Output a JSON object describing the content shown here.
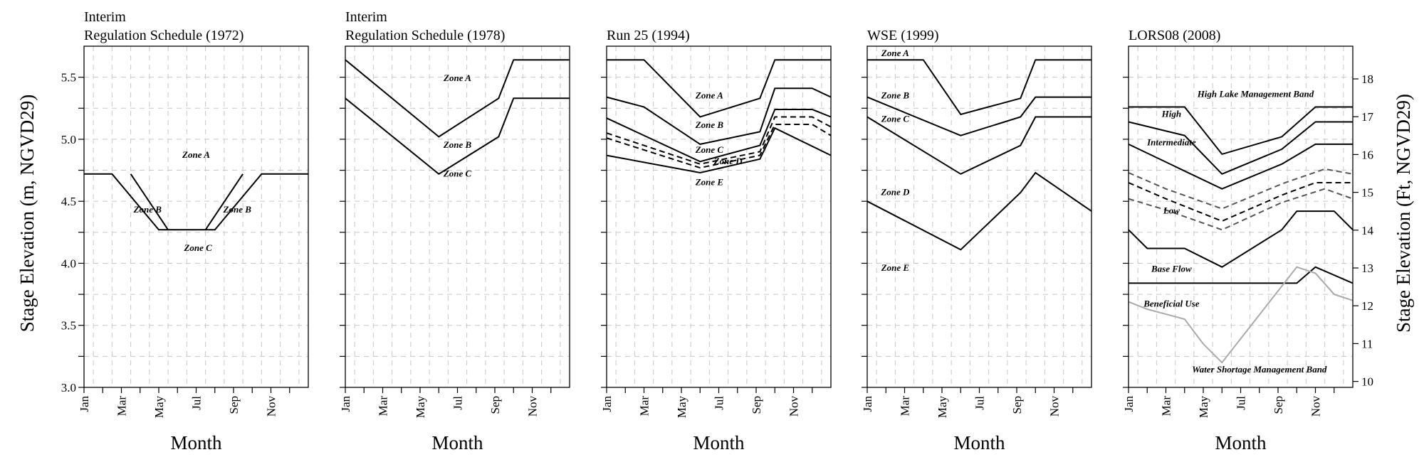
{
  "chart_data": {
    "type": "line",
    "ylabel_left": "Stage Elevation (m, NGVD29)",
    "ylabel_right": "Stage Elevation (Ft, NGVD29)",
    "ylim_m": [
      3.0,
      5.75
    ],
    "yticks_m": [
      "3.0",
      "3.5",
      "4.0",
      "4.5",
      "5.0",
      "5.5"
    ],
    "yticks_ft": [
      "10",
      "11",
      "12",
      "13",
      "14",
      "15",
      "16",
      "17",
      "18"
    ],
    "grid": true,
    "panels": [
      {
        "title_lines": [
          "Interim",
          "Regulation Schedule (1972)"
        ],
        "xlabel": "Month",
        "xticks": [
          "Jan",
          "Mar",
          "May",
          "Jul",
          "Sep",
          "Nov"
        ],
        "series": [
          {
            "style": "solid",
            "points": [
              [
                1,
                4.72
              ],
              [
                2.5,
                4.72
              ],
              [
                5,
                4.27
              ],
              [
                8,
                4.27
              ],
              [
                10.5,
                4.72
              ],
              [
                13,
                4.72
              ]
            ]
          },
          {
            "style": "solid",
            "points": [
              [
                3.5,
                4.72
              ],
              [
                5.5,
                4.27
              ]
            ]
          },
          {
            "style": "solid",
            "points": [
              [
                7.5,
                4.27
              ],
              [
                9.5,
                4.72
              ]
            ]
          }
        ],
        "annotations": [
          {
            "text": "Zone A",
            "x": 7,
            "y": 4.85
          },
          {
            "text": "Zone B",
            "x": 4.4,
            "y": 4.41
          },
          {
            "text": "Zone B",
            "x": 9.2,
            "y": 4.41
          },
          {
            "text": "Zone C",
            "x": 7.1,
            "y": 4.1
          }
        ]
      },
      {
        "title_lines": [
          "Interim",
          "Regulation Schedule (1978)"
        ],
        "xlabel": "Month",
        "xticks": [
          "Jan",
          "Mar",
          "May",
          "Jul",
          "Sep",
          "Nov"
        ],
        "series": [
          {
            "style": "solid",
            "points": [
              [
                1,
                5.64
              ],
              [
                6,
                5.02
              ],
              [
                9.2,
                5.33
              ],
              [
                10,
                5.64
              ],
              [
                13,
                5.64
              ]
            ]
          },
          {
            "style": "solid",
            "points": [
              [
                1,
                5.33
              ],
              [
                6,
                4.72
              ],
              [
                9.2,
                5.02
              ],
              [
                10,
                5.33
              ],
              [
                13,
                5.33
              ]
            ]
          }
        ],
        "annotations": [
          {
            "text": "Zone A",
            "x": 7,
            "y": 5.47
          },
          {
            "text": "Zone B",
            "x": 7,
            "y": 4.93
          },
          {
            "text": "Zone C",
            "x": 7,
            "y": 4.7
          }
        ]
      },
      {
        "title_lines": [
          "Run 25 (1994)"
        ],
        "xlabel": "Month",
        "xticks": [
          "Jan",
          "Mar",
          "May",
          "Jul",
          "Sep",
          "Nov"
        ],
        "series": [
          {
            "style": "solid",
            "points": [
              [
                1,
                5.64
              ],
              [
                3,
                5.64
              ],
              [
                6,
                5.18
              ],
              [
                9.2,
                5.33
              ],
              [
                10,
                5.64
              ],
              [
                13,
                5.64
              ]
            ]
          },
          {
            "style": "solid",
            "points": [
              [
                1,
                5.34
              ],
              [
                3,
                5.26
              ],
              [
                6,
                4.96
              ],
              [
                9.2,
                5.06
              ],
              [
                10,
                5.41
              ],
              [
                12,
                5.41
              ],
              [
                13,
                5.34
              ]
            ]
          },
          {
            "style": "solid",
            "points": [
              [
                1,
                5.17
              ],
              [
                6,
                4.82
              ],
              [
                9.2,
                4.95
              ],
              [
                10,
                5.24
              ],
              [
                12,
                5.24
              ],
              [
                13,
                5.18
              ]
            ]
          },
          {
            "style": "dashed",
            "points": [
              [
                1,
                5.05
              ],
              [
                6,
                4.8
              ],
              [
                9.2,
                4.9
              ],
              [
                10,
                5.18
              ],
              [
                12,
                5.18
              ],
              [
                13,
                5.1
              ]
            ]
          },
          {
            "style": "dashed",
            "points": [
              [
                1,
                5.01
              ],
              [
                6,
                4.77
              ],
              [
                9.2,
                4.87
              ],
              [
                10,
                5.12
              ],
              [
                12,
                5.12
              ],
              [
                13,
                5.03
              ]
            ]
          },
          {
            "style": "solid",
            "points": [
              [
                1,
                4.87
              ],
              [
                6,
                4.73
              ],
              [
                9.2,
                4.84
              ],
              [
                10,
                5.09
              ],
              [
                13,
                4.87
              ]
            ]
          }
        ],
        "annotations": [
          {
            "text": "Zone A",
            "x": 6.5,
            "y": 5.33
          },
          {
            "text": "Zone B",
            "x": 6.5,
            "y": 5.09
          },
          {
            "text": "Zone C",
            "x": 6.5,
            "y": 4.89
          },
          {
            "text": "Zone D",
            "x": 7.5,
            "y": 4.8
          },
          {
            "text": "Zone E",
            "x": 6.5,
            "y": 4.63
          }
        ]
      },
      {
        "title_lines": [
          "WSE (1999)"
        ],
        "xlabel": "Month",
        "xticks": [
          "Jan",
          "Mar",
          "May",
          "Jul",
          "Sep",
          "Nov"
        ],
        "series": [
          {
            "style": "solid",
            "points": [
              [
                1,
                5.64
              ],
              [
                4,
                5.64
              ],
              [
                6,
                5.2
              ],
              [
                9.2,
                5.33
              ],
              [
                10,
                5.64
              ],
              [
                13,
                5.64
              ]
            ]
          },
          {
            "style": "solid",
            "points": [
              [
                1,
                5.34
              ],
              [
                6,
                5.03
              ],
              [
                9.2,
                5.18
              ],
              [
                10,
                5.34
              ],
              [
                13,
                5.34
              ]
            ]
          },
          {
            "style": "solid",
            "points": [
              [
                1,
                5.18
              ],
              [
                6,
                4.72
              ],
              [
                9.2,
                4.95
              ],
              [
                10,
                5.18
              ],
              [
                13,
                5.18
              ]
            ]
          },
          {
            "style": "solid",
            "points": [
              [
                1,
                4.5
              ],
              [
                6,
                4.11
              ],
              [
                9.2,
                4.57
              ],
              [
                10,
                4.73
              ],
              [
                13,
                4.42
              ]
            ]
          }
        ],
        "annotations": [
          {
            "text": "Zone A",
            "x": 2.5,
            "y": 5.67
          },
          {
            "text": "Zone B",
            "x": 2.5,
            "y": 5.33
          },
          {
            "text": "Zone C",
            "x": 2.5,
            "y": 5.14
          },
          {
            "text": "Zone D",
            "x": 2.5,
            "y": 4.55
          },
          {
            "text": "Zone E",
            "x": 2.5,
            "y": 3.94
          }
        ]
      },
      {
        "title_lines": [
          "LORS08 (2008)"
        ],
        "xlabel": "Month",
        "xticks": [
          "Jan",
          "Mar",
          "May",
          "Jul",
          "Sep",
          "Nov"
        ],
        "series": [
          {
            "style": "solid",
            "points": [
              [
                1,
                5.26
              ],
              [
                4,
                5.26
              ],
              [
                6,
                4.88
              ],
              [
                9.2,
                5.02
              ],
              [
                11,
                5.26
              ],
              [
                13,
                5.26
              ]
            ]
          },
          {
            "style": "solid",
            "points": [
              [
                1,
                5.14
              ],
              [
                4,
                5.03
              ],
              [
                6,
                4.72
              ],
              [
                9.2,
                4.92
              ],
              [
                11,
                5.14
              ],
              [
                13,
                5.14
              ]
            ]
          },
          {
            "style": "solid",
            "points": [
              [
                1,
                4.96
              ],
              [
                6,
                4.6
              ],
              [
                9.2,
                4.8
              ],
              [
                11,
                4.96
              ],
              [
                13,
                4.96
              ]
            ]
          },
          {
            "style": "dashed",
            "color": "#555555",
            "points": [
              [
                1,
                4.73
              ],
              [
                3,
                4.6
              ],
              [
                6,
                4.44
              ],
              [
                9.2,
                4.64
              ],
              [
                11.5,
                4.76
              ],
              [
                13,
                4.72
              ]
            ]
          },
          {
            "style": "dashed",
            "color": "#000000",
            "points": [
              [
                1,
                4.65
              ],
              [
                3,
                4.52
              ],
              [
                6,
                4.34
              ],
              [
                9.2,
                4.55
              ],
              [
                11,
                4.65
              ],
              [
                13,
                4.65
              ]
            ]
          },
          {
            "style": "dashed",
            "color": "#555555",
            "points": [
              [
                1,
                4.52
              ],
              [
                3,
                4.43
              ],
              [
                6,
                4.27
              ],
              [
                9.2,
                4.49
              ],
              [
                11.5,
                4.6
              ],
              [
                13,
                4.52
              ]
            ]
          },
          {
            "style": "solid",
            "points": [
              [
                1,
                4.27
              ],
              [
                2,
                4.12
              ],
              [
                4,
                4.12
              ],
              [
                6,
                3.97
              ],
              [
                9.2,
                4.27
              ],
              [
                10,
                4.42
              ],
              [
                12,
                4.42
              ],
              [
                13,
                4.27
              ]
            ]
          },
          {
            "style": "solid",
            "points": [
              [
                1,
                3.84
              ],
              [
                10,
                3.84
              ],
              [
                11,
                3.97
              ],
              [
                13,
                3.84
              ]
            ]
          },
          {
            "style": "solid",
            "color": "#aaaaaa",
            "points": [
              [
                1,
                3.69
              ],
              [
                2,
                3.63
              ],
              [
                4,
                3.55
              ],
              [
                5,
                3.35
              ],
              [
                6,
                3.2
              ],
              [
                10,
                3.97
              ],
              [
                11,
                3.92
              ],
              [
                12,
                3.75
              ],
              [
                13,
                3.7
              ]
            ]
          }
        ],
        "annotations": [
          {
            "text": "High Lake Management Band",
            "x": 7.8,
            "y": 5.34
          },
          {
            "text": "High",
            "x": 3.3,
            "y": 5.18
          },
          {
            "text": "Intermediate",
            "x": 3.3,
            "y": 4.95
          },
          {
            "text": "Low",
            "x": 3.3,
            "y": 4.4
          },
          {
            "text": "Base Flow",
            "x": 3.3,
            "y": 3.93
          },
          {
            "text": "Beneficial Use",
            "x": 3.3,
            "y": 3.65
          },
          {
            "text": "Water Shortage Management Band",
            "x": 8,
            "y": 3.12
          }
        ]
      }
    ]
  }
}
